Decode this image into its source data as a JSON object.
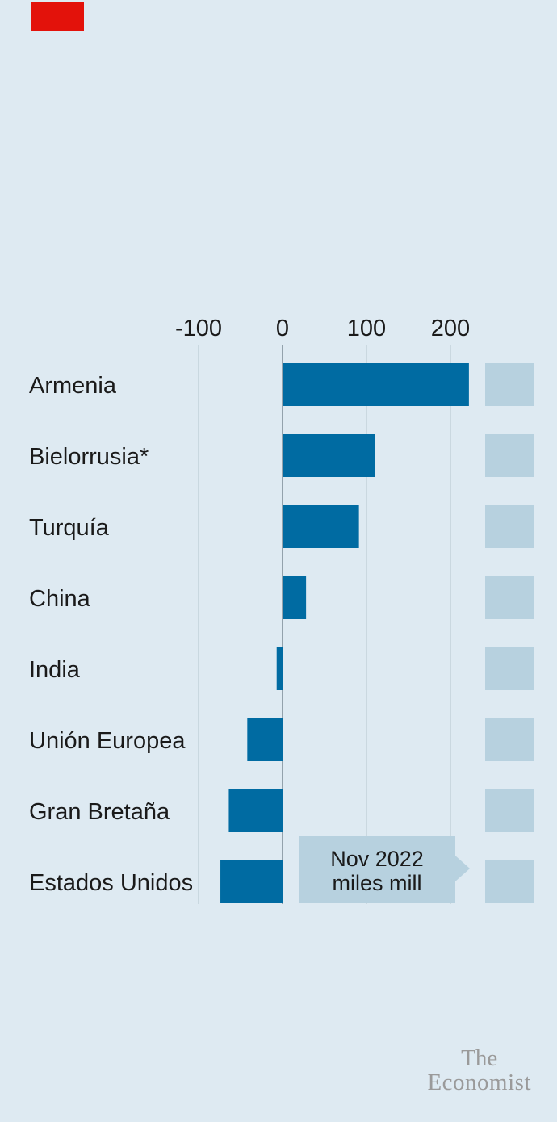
{
  "chart_data": {
    "type": "bar",
    "orientation": "horizontal",
    "categories": [
      "Armenia",
      "Bielorrusia*",
      "Turquía",
      "China",
      "India",
      "Unión Europea",
      "Gran Bretaña",
      "Estados Unidos"
    ],
    "values": [
      222,
      110,
      91,
      28,
      -7,
      -42,
      -64,
      -74
    ],
    "xlim": [
      -100,
      240
    ],
    "xticks": [
      -100,
      0,
      100,
      200
    ],
    "xtick_labels": [
      "-100",
      "0",
      "100",
      "200"
    ],
    "grid": true,
    "annotation": {
      "line1": "Nov 2022",
      "line2": "miles mill"
    },
    "colors": {
      "bar": "#006ba2",
      "placeholder": "#b7d1df",
      "annotation_box": "#b7d1df",
      "zero_line": "#7a8a94",
      "grid": "#bccbd4"
    }
  },
  "branding": {
    "logo_line1": "The",
    "logo_line2": "Economist"
  }
}
